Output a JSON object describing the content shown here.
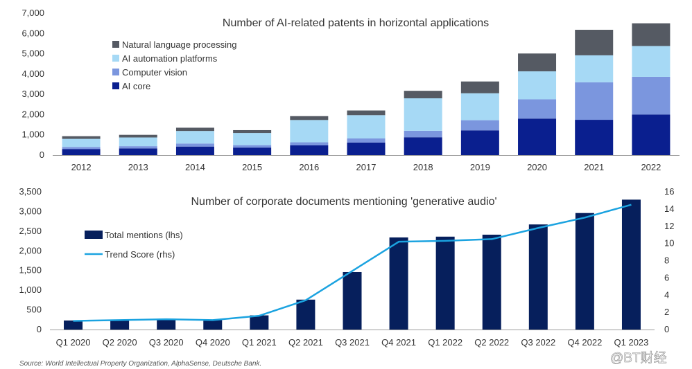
{
  "chart_data": [
    {
      "type": "bar",
      "stacked": true,
      "title": "Number of AI-related patents in horizontal applications",
      "categories": [
        "2012",
        "2013",
        "2014",
        "2015",
        "2016",
        "2017",
        "2018",
        "2019",
        "2020",
        "2021",
        "2022"
      ],
      "series": [
        {
          "name": "AI core",
          "color": "#0a1f8f",
          "values": [
            300,
            330,
            420,
            370,
            480,
            620,
            880,
            1220,
            1800,
            1740,
            2000
          ]
        },
        {
          "name": "Computer vision",
          "color": "#7b96de",
          "values": [
            100,
            110,
            150,
            120,
            150,
            200,
            320,
            500,
            950,
            1850,
            1860
          ]
        },
        {
          "name": "AI automation platforms",
          "color": "#a6d9f5",
          "values": [
            400,
            430,
            620,
            600,
            1100,
            1150,
            1600,
            1330,
            1380,
            1330,
            1520
          ]
        },
        {
          "name": "Natural language processing",
          "color": "#555a63",
          "values": [
            130,
            130,
            160,
            140,
            190,
            230,
            370,
            580,
            880,
            1260,
            1120
          ]
        }
      ],
      "legend_order": [
        "Natural language processing",
        "AI automation platforms",
        "Computer vision",
        "AI core"
      ],
      "legend_position": "top-left",
      "ylim": [
        0,
        7000
      ],
      "yticks": [
        0,
        1000,
        2000,
        3000,
        4000,
        5000,
        6000,
        7000
      ],
      "ytick_labels": [
        "0",
        "1,000",
        "2,000",
        "3,000",
        "4,000",
        "5,000",
        "6,000",
        "7,000"
      ],
      "grid": false
    },
    {
      "type": "bar",
      "title": "Number of corporate documents mentioning 'generative audio'",
      "categories": [
        "Q1 2020",
        "Q2 2020",
        "Q3 2020",
        "Q4 2020",
        "Q1 2021",
        "Q2 2021",
        "Q3 2021",
        "Q4 2021",
        "Q1 2022",
        "Q2 2022",
        "Q3 2022",
        "Q4 2022",
        "Q1 2023"
      ],
      "series": [
        {
          "name": "Total mentions (lhs)",
          "type": "bar",
          "axis": "left",
          "color": "#061f5c",
          "values": [
            230,
            240,
            260,
            240,
            360,
            760,
            1460,
            2340,
            2360,
            2410,
            2670,
            2960,
            3300
          ]
        },
        {
          "name": "Trend Score (rhs)",
          "type": "line",
          "axis": "right",
          "color": "#1ba3e0",
          "values": [
            1.0,
            1.1,
            1.2,
            1.1,
            1.6,
            3.4,
            6.8,
            10.2,
            10.3,
            10.5,
            11.8,
            13.0,
            14.5
          ]
        }
      ],
      "legend_position": "top-left",
      "ylim_left": [
        0,
        3500
      ],
      "yticks_left": [
        0,
        500,
        1000,
        1500,
        2000,
        2500,
        3000,
        3500
      ],
      "ytick_labels_left": [
        "0",
        "500",
        "1,000",
        "1,500",
        "2,000",
        "2,500",
        "3,000",
        "3,500"
      ],
      "ylim_right": [
        0,
        16
      ],
      "yticks_right": [
        0,
        2,
        4,
        6,
        8,
        10,
        12,
        14,
        16
      ],
      "ytick_labels_right": [
        "0",
        "2",
        "4",
        "6",
        "8",
        "10",
        "12",
        "14",
        "16"
      ],
      "grid": false
    }
  ],
  "footer": {
    "source": "Source: World Intellectual Property Organization, AlphaSense, Deutsche Bank.",
    "watermark": "@BT财经"
  },
  "colors": {
    "axis": "#999999",
    "text": "#333333"
  }
}
